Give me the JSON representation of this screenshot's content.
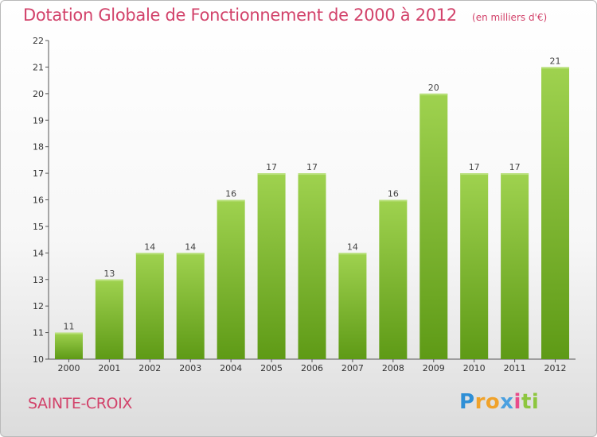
{
  "header": {
    "title": "Dotation Globale de Fonctionnement de 2000 à 2012",
    "unit": "(en milliers d'€)"
  },
  "footer": {
    "city": "SAINTE-CROIX",
    "logo": {
      "text": "Proxiti",
      "letters": [
        "P",
        "r",
        "o",
        "x",
        "i",
        "t",
        "i"
      ],
      "colors": [
        "#2f8fd6",
        "#f0a22a",
        "#f0a22a",
        "#4aa0e0",
        "#e94b8a",
        "#8dc63f",
        "#8dc63f"
      ]
    }
  },
  "colors": {
    "bar_top": "#9fd24f",
    "bar_bottom": "#5e9a16",
    "title": "#d2426a"
  },
  "chart_data": {
    "type": "bar",
    "title": "Dotation Globale de Fonctionnement de 2000 à 2012",
    "unit": "(en milliers d'€)",
    "categories": [
      "2000",
      "2001",
      "2002",
      "2003",
      "2004",
      "2005",
      "2006",
      "2007",
      "2008",
      "2009",
      "2010",
      "2011",
      "2012"
    ],
    "values": [
      11,
      13,
      14,
      14,
      16,
      17,
      17,
      14,
      16,
      20,
      17,
      17,
      21
    ],
    "ylim": [
      10,
      22
    ],
    "yticks": [
      10,
      11,
      12,
      13,
      14,
      15,
      16,
      17,
      18,
      19,
      20,
      21,
      22
    ],
    "grid": false,
    "legend": "none"
  }
}
